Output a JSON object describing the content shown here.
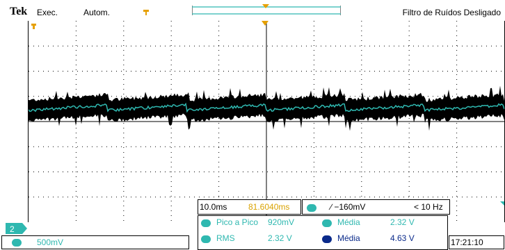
{
  "header": {
    "brand": "Tek",
    "acq_state": "Exec.",
    "trigger_mode": "Autom.",
    "filter_status": "Filtro de Ruídos Desligado"
  },
  "channel": {
    "number": "2",
    "scale": "500mV",
    "color": "#2fb8b0"
  },
  "timebase": {
    "scale": "10.0ms",
    "position": "81.6040ms",
    "position_color": "#d9a200"
  },
  "trigger": {
    "source": "2",
    "slope_level": "∕ −160mV",
    "frequency": "< 10 Hz"
  },
  "measurements": [
    {
      "channel": "2",
      "name": "Pico a Pico",
      "value": "920mV",
      "chip_color": "#2fb8b0"
    },
    {
      "channel": "2",
      "name": "Média",
      "value": "2.32 V",
      "chip_color": "#2fb8b0"
    },
    {
      "channel": "2",
      "name": "RMS",
      "value": "2.32 V",
      "chip_color": "#2fb8b0"
    },
    {
      "channel": "1",
      "name": "Média",
      "value": "4.63 V",
      "chip_color": "#0a2a8a"
    }
  ],
  "clock": "17:21:10",
  "colors": {
    "trigger_marker": "#e6a000",
    "record_bar": "#2fb8b0",
    "trace_envelope": "#000000",
    "trace_mean": "#2fb8b0"
  }
}
